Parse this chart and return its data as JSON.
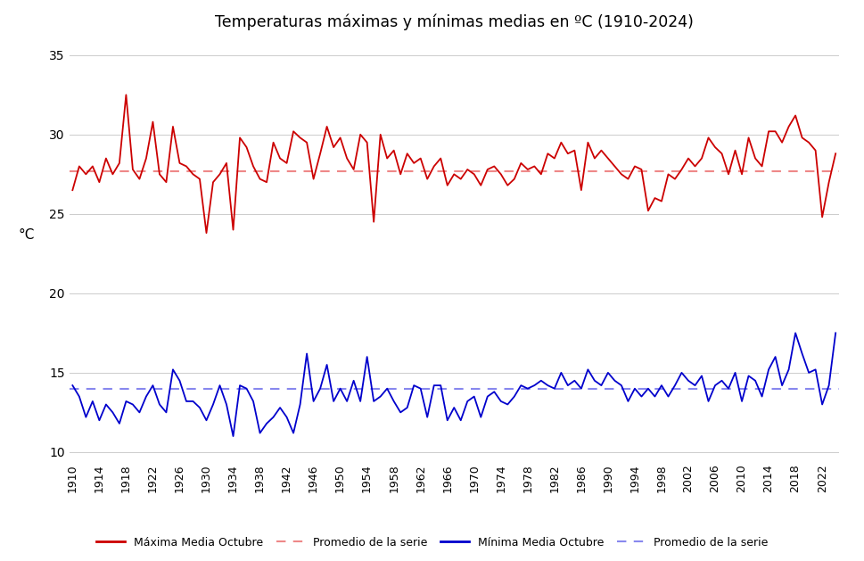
{
  "title": "Temperaturas máximas y mínimas medias en ºC (1910-2024)",
  "ylabel": "°C",
  "years": [
    1910,
    1911,
    1912,
    1913,
    1914,
    1915,
    1916,
    1917,
    1918,
    1919,
    1920,
    1921,
    1922,
    1923,
    1924,
    1925,
    1926,
    1927,
    1928,
    1929,
    1930,
    1931,
    1932,
    1933,
    1934,
    1935,
    1936,
    1937,
    1938,
    1939,
    1940,
    1941,
    1942,
    1943,
    1944,
    1945,
    1946,
    1947,
    1948,
    1949,
    1950,
    1951,
    1952,
    1953,
    1954,
    1955,
    1956,
    1957,
    1958,
    1959,
    1960,
    1961,
    1962,
    1963,
    1964,
    1965,
    1966,
    1967,
    1968,
    1969,
    1970,
    1971,
    1972,
    1973,
    1974,
    1975,
    1976,
    1977,
    1978,
    1979,
    1980,
    1981,
    1982,
    1983,
    1984,
    1985,
    1986,
    1987,
    1988,
    1989,
    1990,
    1991,
    1992,
    1993,
    1994,
    1995,
    1996,
    1997,
    1998,
    1999,
    2000,
    2001,
    2002,
    2003,
    2004,
    2005,
    2006,
    2007,
    2008,
    2009,
    2010,
    2011,
    2012,
    2013,
    2014,
    2015,
    2016,
    2017,
    2018,
    2019,
    2020,
    2021,
    2022,
    2023,
    2024
  ],
  "max_temps": [
    26.5,
    28.0,
    27.5,
    28.0,
    27.0,
    28.5,
    27.5,
    28.2,
    32.5,
    27.8,
    27.2,
    28.5,
    30.8,
    27.5,
    27.0,
    30.5,
    28.2,
    28.0,
    27.5,
    27.2,
    23.8,
    27.0,
    27.5,
    28.2,
    24.0,
    29.8,
    29.2,
    28.0,
    27.2,
    27.0,
    29.5,
    28.5,
    28.2,
    30.2,
    29.8,
    29.5,
    27.2,
    28.8,
    30.5,
    29.2,
    29.8,
    28.5,
    27.8,
    30.0,
    29.5,
    24.5,
    30.0,
    28.5,
    29.0,
    27.5,
    28.8,
    28.2,
    28.5,
    27.2,
    28.0,
    28.5,
    26.8,
    27.5,
    27.2,
    27.8,
    27.5,
    26.8,
    27.8,
    28.0,
    27.5,
    26.8,
    27.2,
    28.2,
    27.8,
    28.0,
    27.5,
    28.8,
    28.5,
    29.5,
    28.8,
    29.0,
    26.5,
    29.5,
    28.5,
    29.0,
    28.5,
    28.0,
    27.5,
    27.2,
    28.0,
    27.8,
    25.2,
    26.0,
    25.8,
    27.5,
    27.2,
    27.8,
    28.5,
    28.0,
    28.5,
    29.8,
    29.2,
    28.8,
    27.5,
    29.0,
    27.5,
    29.8,
    28.5,
    28.0,
    30.2,
    30.2,
    29.5,
    30.5,
    31.2,
    29.8,
    29.5,
    29.0,
    24.8,
    27.0,
    28.8
  ],
  "min_temps": [
    14.2,
    13.5,
    12.2,
    13.2,
    12.0,
    13.0,
    12.5,
    11.8,
    13.2,
    13.0,
    12.5,
    13.5,
    14.2,
    13.0,
    12.5,
    15.2,
    14.5,
    13.2,
    13.2,
    12.8,
    12.0,
    13.0,
    14.2,
    13.0,
    11.0,
    14.2,
    14.0,
    13.2,
    11.2,
    11.8,
    12.2,
    12.8,
    12.2,
    11.2,
    13.0,
    16.2,
    13.2,
    14.0,
    15.5,
    13.2,
    14.0,
    13.2,
    14.5,
    13.2,
    16.0,
    13.2,
    13.5,
    14.0,
    13.2,
    12.5,
    12.8,
    14.2,
    14.0,
    12.2,
    14.2,
    14.2,
    12.0,
    12.8,
    12.0,
    13.2,
    13.5,
    12.2,
    13.5,
    13.8,
    13.2,
    13.0,
    13.5,
    14.2,
    14.0,
    14.2,
    14.5,
    14.2,
    14.0,
    15.0,
    14.2,
    14.5,
    14.0,
    15.2,
    14.5,
    14.2,
    15.0,
    14.5,
    14.2,
    13.2,
    14.0,
    13.5,
    14.0,
    13.5,
    14.2,
    13.5,
    14.2,
    15.0,
    14.5,
    14.2,
    14.8,
    13.2,
    14.2,
    14.5,
    14.0,
    15.0,
    13.2,
    14.8,
    14.5,
    13.5,
    15.2,
    16.0,
    14.2,
    15.2,
    17.5,
    16.2,
    15.0,
    15.2,
    13.0,
    14.2,
    17.5
  ],
  "max_avg": 27.7,
  "min_avg": 14.0,
  "max_color": "#cc0000",
  "min_color": "#0000cc",
  "max_avg_color": "#ee8888",
  "min_avg_color": "#8888ee",
  "bg_color": "#ffffff",
  "grid_color": "#cccccc",
  "xtick_step": 4,
  "xlim_left": 1909.5,
  "xlim_right": 2024.5,
  "ylim_all": [
    9.5,
    36.0
  ],
  "yticks_shown": [
    10,
    15,
    20,
    25,
    30,
    35
  ],
  "legend_labels": [
    "Máxima Media Octubre",
    "Promedio de la serie",
    "Mínima Media Octubre",
    "Promedio de la serie"
  ]
}
